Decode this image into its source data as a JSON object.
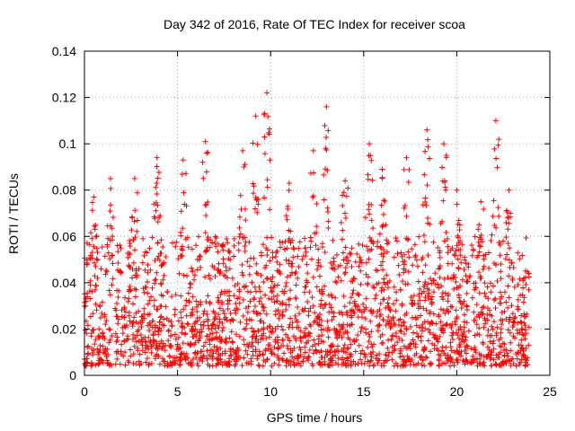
{
  "chart_data": {
    "type": "scatter",
    "title": "Day 342 of 2016, Rate Of TEC Index for receiver scoa",
    "xlabel": "GPS time / hours",
    "ylabel": "ROTI / TECUs",
    "xlim": [
      0,
      25
    ],
    "ylim": [
      0,
      0.14
    ],
    "xticks": [
      0,
      5,
      10,
      15,
      20,
      25
    ],
    "xtick_labels": [
      "0",
      "5",
      "10",
      "15",
      "20",
      "25"
    ],
    "yticks": [
      0,
      0.02,
      0.04,
      0.06,
      0.08,
      0.1,
      0.12,
      0.14
    ],
    "ytick_labels": [
      "0",
      "0.02",
      "0.04",
      "0.06",
      "0.08",
      "0.1",
      "0.12",
      "0.14"
    ],
    "grid": true,
    "marker": "+",
    "color": "#ff0000",
    "series": [
      {
        "name": "ROTI",
        "x_range": [
          0,
          23.9
        ],
        "dense_band": [
          0.004,
          0.03
        ],
        "typical_max": 0.06,
        "peaks": [
          {
            "x": 0.5,
            "y": 0.077
          },
          {
            "x": 1.4,
            "y": 0.085
          },
          {
            "x": 2.7,
            "y": 0.085
          },
          {
            "x": 3.9,
            "y": 0.094
          },
          {
            "x": 5.3,
            "y": 0.093
          },
          {
            "x": 6.5,
            "y": 0.101
          },
          {
            "x": 8.5,
            "y": 0.097
          },
          {
            "x": 9.2,
            "y": 0.112
          },
          {
            "x": 9.8,
            "y": 0.122
          },
          {
            "x": 11.0,
            "y": 0.083
          },
          {
            "x": 12.3,
            "y": 0.097
          },
          {
            "x": 13.0,
            "y": 0.116
          },
          {
            "x": 14.0,
            "y": 0.084
          },
          {
            "x": 15.3,
            "y": 0.1
          },
          {
            "x": 16.0,
            "y": 0.089
          },
          {
            "x": 17.3,
            "y": 0.094
          },
          {
            "x": 18.4,
            "y": 0.106
          },
          {
            "x": 19.3,
            "y": 0.1
          },
          {
            "x": 20.0,
            "y": 0.08
          },
          {
            "x": 21.3,
            "y": 0.075
          },
          {
            "x": 22.1,
            "y": 0.11
          },
          {
            "x": 22.8,
            "y": 0.08
          }
        ]
      }
    ]
  }
}
